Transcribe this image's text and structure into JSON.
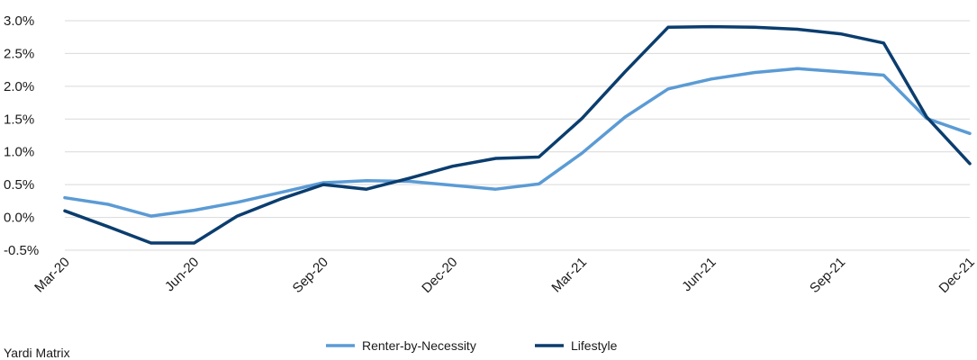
{
  "chart_data": {
    "type": "line",
    "title": "",
    "xlabel": "",
    "ylabel": "",
    "x": [
      "Mar-20",
      "Apr-20",
      "May-20",
      "Jun-20",
      "Jul-20",
      "Aug-20",
      "Sep-20",
      "Oct-20",
      "Nov-20",
      "Dec-20",
      "Jan-21",
      "Feb-21",
      "Mar-21",
      "Apr-21",
      "May-21",
      "Jun-21",
      "Jul-21",
      "Aug-21",
      "Sep-21",
      "Oct-21",
      "Nov-21",
      "Dec-21"
    ],
    "x_tick_labels": [
      "Mar-20",
      "Jun-20",
      "Sep-20",
      "Dec-20",
      "Mar-21",
      "Jun-21",
      "Sep-21",
      "Dec-21"
    ],
    "ylim": [
      -0.5,
      3.0
    ],
    "y_tick_labels": [
      "3.0%",
      "2.5%",
      "2.0%",
      "1.5%",
      "1.0%",
      "0.5%",
      "0.0%",
      "-0.5%"
    ],
    "y_ticks": [
      3.0,
      2.5,
      2.0,
      1.5,
      1.0,
      0.5,
      0.0,
      -0.5
    ],
    "grid": true,
    "legend_position": "bottom",
    "series": [
      {
        "name": "Renter-by-Necessity",
        "color": "#5b9bd5",
        "values": [
          0.3,
          0.2,
          0.02,
          0.11,
          0.23,
          0.38,
          0.53,
          0.56,
          0.55,
          0.49,
          0.43,
          0.51,
          0.98,
          1.53,
          1.96,
          2.11,
          2.21,
          2.27,
          2.22,
          2.17,
          1.51,
          1.28
        ]
      },
      {
        "name": "Lifestyle",
        "color": "#0b3d6e",
        "values": [
          0.1,
          -0.14,
          -0.39,
          -0.39,
          0.02,
          0.28,
          0.5,
          0.43,
          0.6,
          0.78,
          0.9,
          0.92,
          1.51,
          2.22,
          2.9,
          2.91,
          2.9,
          2.87,
          2.8,
          2.66,
          1.53,
          0.82
        ]
      }
    ]
  },
  "footer": {
    "source_note": "Yardi Matrix"
  }
}
